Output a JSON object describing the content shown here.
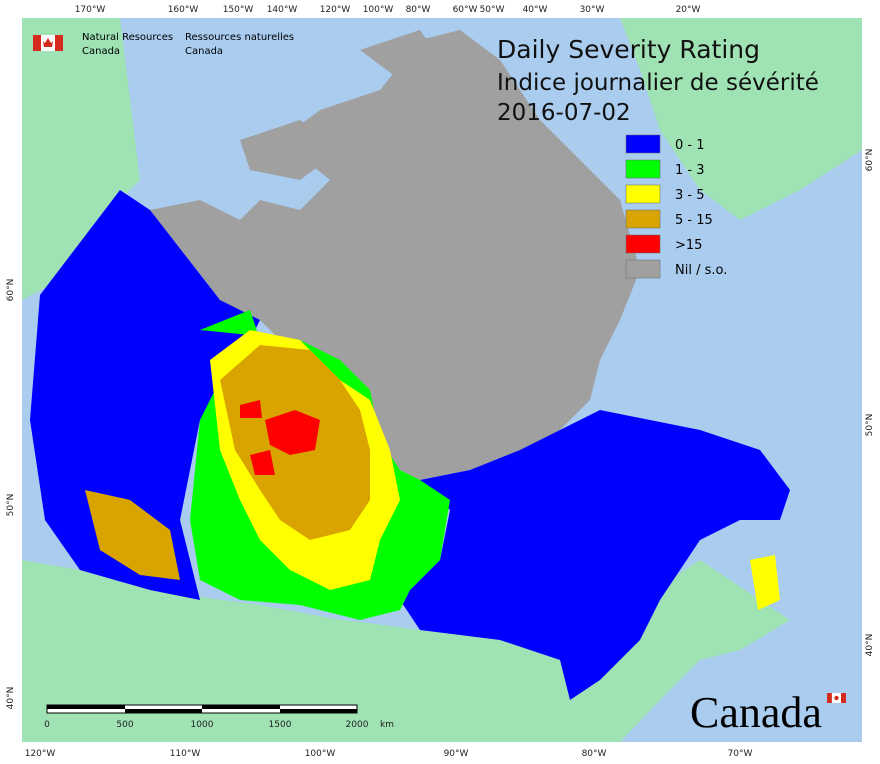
{
  "header": {
    "agency_en": [
      "Natural Resources",
      "Canada"
    ],
    "agency_fr": [
      "Ressources naturelles",
      "Canada"
    ],
    "wordmark": "Canada"
  },
  "title": {
    "line1": "Daily Severity Rating",
    "line2": "Indice journalier de sévérité",
    "date": "2016-07-02"
  },
  "legend": [
    {
      "label": "0 - 1",
      "color": "#0000ff"
    },
    {
      "label": "1 - 3",
      "color": "#00ff00"
    },
    {
      "label": "3 - 5",
      "color": "#ffff00"
    },
    {
      "label": "5 - 15",
      "color": "#d9a400"
    },
    {
      "label": ">15",
      "color": "#ff0000"
    },
    {
      "label": "Nil / s.o.",
      "color": "#a0a0a0"
    }
  ],
  "graticule": {
    "top": [
      "170°W",
      "160°W",
      "150°W",
      "140°W",
      "120°W",
      "100°W",
      "80°W",
      "60°W",
      "50°W",
      "40°W",
      "30°W",
      "20°W"
    ],
    "bottom": [
      "120°W",
      "110°W",
      "100°W",
      "90°W",
      "80°W",
      "70°W"
    ],
    "left": [
      "60°N",
      "50°N",
      "40°N"
    ],
    "right": [
      "60°N",
      "50°N",
      "40°N"
    ]
  },
  "scale_bar": {
    "ticks": [
      "0",
      "500",
      "1000",
      "1500",
      "2000"
    ],
    "unit": "km"
  }
}
